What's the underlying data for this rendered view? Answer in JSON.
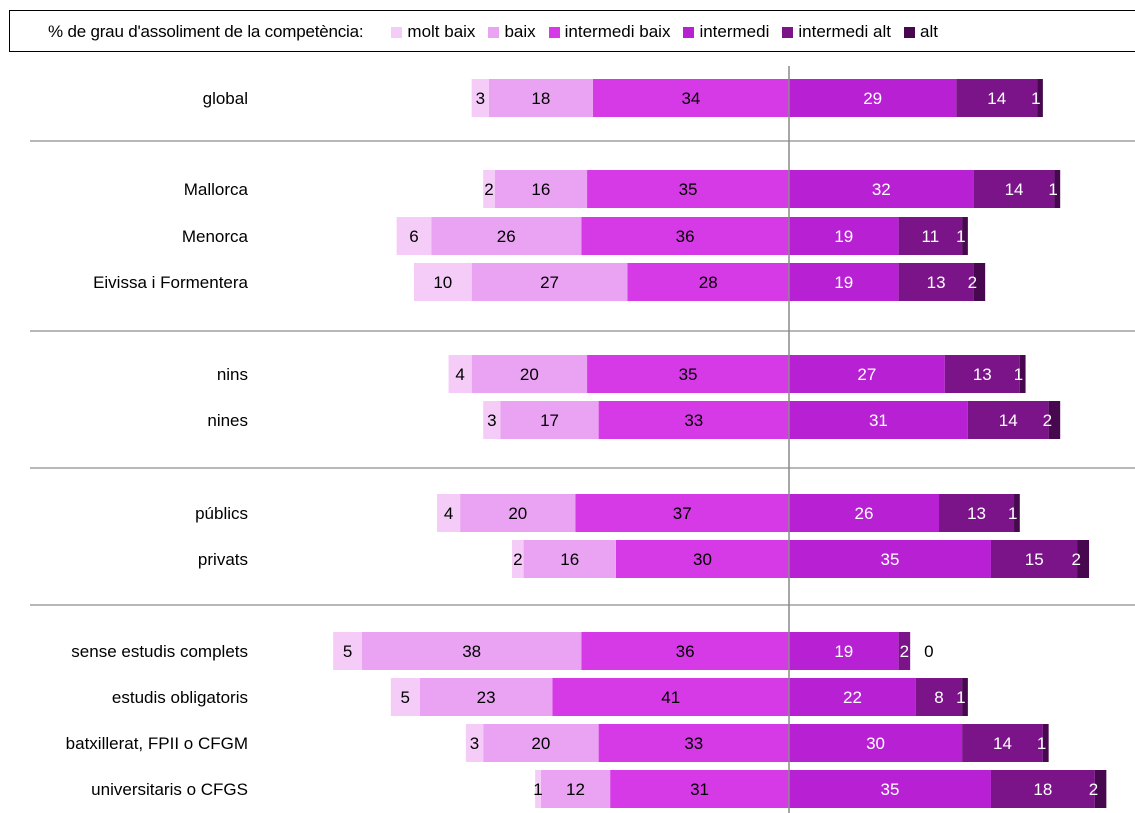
{
  "chart_data": {
    "type": "bar",
    "subtype": "diverging-stacked-horizontal",
    "legend_title": "% de grau d'assoliment de la competència:",
    "legend_placement": "top",
    "categories": [
      "global",
      "Mallorca",
      "Menorca",
      "Eivissa i Formentera",
      "nins",
      "nines",
      "públics",
      "privats",
      "sense estudis complets",
      "estudis obligatoris",
      "batxillerat, FPII o CFGM",
      "universitaris o CFGS"
    ],
    "groups": [
      [
        0
      ],
      [
        1,
        2,
        3
      ],
      [
        4,
        5
      ],
      [
        6,
        7
      ],
      [
        8,
        9,
        10,
        11
      ]
    ],
    "series": [
      {
        "name": "molt baix",
        "color": "#f5ccf8",
        "values": [
          3,
          2,
          6,
          10,
          4,
          3,
          4,
          2,
          5,
          5,
          3,
          1
        ]
      },
      {
        "name": "baix",
        "color": "#eaa3f2",
        "values": [
          18,
          16,
          26,
          27,
          20,
          17,
          20,
          16,
          38,
          23,
          20,
          12
        ]
      },
      {
        "name": "intermedi baix",
        "color": "#d63ae6",
        "values": [
          34,
          35,
          36,
          28,
          35,
          33,
          37,
          30,
          36,
          41,
          33,
          31
        ]
      },
      {
        "name": "intermedi",
        "color": "#b820d4",
        "values": [
          29,
          32,
          19,
          19,
          27,
          31,
          26,
          35,
          19,
          22,
          30,
          35
        ]
      },
      {
        "name": "intermedi alt",
        "color": "#7a1488",
        "values": [
          14,
          14,
          11,
          13,
          13,
          14,
          13,
          15,
          2,
          8,
          14,
          18
        ]
      },
      {
        "name": "alt",
        "color": "#47084f",
        "values": [
          1,
          1,
          1,
          2,
          1,
          2,
          1,
          2,
          0,
          1,
          1,
          2
        ]
      }
    ],
    "diverging_center": "between intermedi baix and intermedi",
    "grid": false
  }
}
